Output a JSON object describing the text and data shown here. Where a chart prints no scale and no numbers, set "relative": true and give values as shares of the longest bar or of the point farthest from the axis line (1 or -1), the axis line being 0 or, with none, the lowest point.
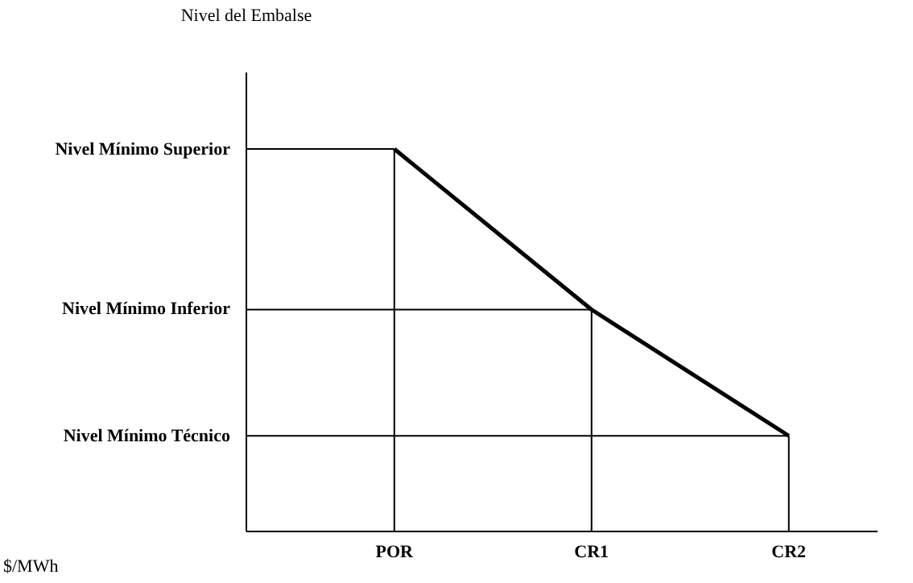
{
  "chart_data": {
    "type": "line",
    "relative": true,
    "categories": [
      "POR",
      "CR1",
      "CR2"
    ],
    "series": [
      {
        "color": "#000000",
        "values": [
          1,
          0.58,
          0.25
        ]
      }
    ],
    "annotations": [
      "Nivel del Embalse",
      "$/MWh"
    ],
    "ref_lines": [
      {
        "axis": "x",
        "value": "POR",
        "color": "#000000"
      },
      {
        "axis": "x",
        "value": "CR1",
        "color": "#000000"
      },
      {
        "axis": "x",
        "value": "CR2",
        "color": "#000000"
      },
      {
        "axis": "y",
        "value": 1,
        "label": "Nivel Mínimo Superior",
        "color": "#000000"
      },
      {
        "axis": "y",
        "value": 0.58,
        "label": "Nivel Mínimo Inferior",
        "color": "#000000"
      },
      {
        "axis": "y",
        "value": 0.25,
        "label": "Nivel Mínimo Técnico",
        "color": "#000000"
      }
    ],
    "grid": false,
    "legend": false,
    "marker": "none",
    "line_style": "solid"
  }
}
